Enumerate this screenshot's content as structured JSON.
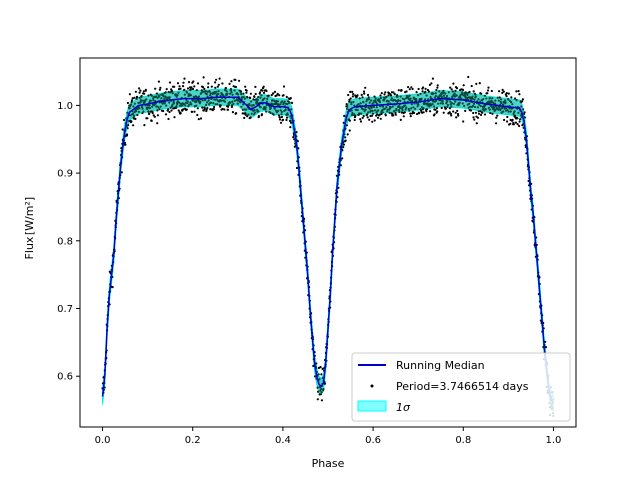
{
  "chart_data": {
    "type": "scatter",
    "xlabel": "Phase",
    "ylabel": "Flux",
    "ylabel_unit": "[W/m²]",
    "xlim": [
      -0.05,
      1.05
    ],
    "ylim": [
      0.525,
      1.07
    ],
    "xticks": [
      0.0,
      0.2,
      0.4,
      0.6,
      0.8,
      1.0
    ],
    "xtick_labels": [
      "0.0",
      "0.2",
      "0.4",
      "0.6",
      "0.8",
      "1.0"
    ],
    "yticks": [
      0.6,
      0.7,
      0.8,
      0.9,
      1.0
    ],
    "ytick_labels": [
      "0.6",
      "0.7",
      "0.8",
      "0.9",
      "1.0"
    ],
    "grid": false,
    "legend_position": "bottom-right",
    "legend": [
      {
        "label": "Running Median",
        "kind": "line",
        "color": "#0000cc"
      },
      {
        "label": "Period=3.7466514 days",
        "kind": "point",
        "color": "#000000"
      },
      {
        "label": "1σ",
        "kind": "patch",
        "color": "#00ffff"
      }
    ],
    "colors": {
      "median": "#0000cc",
      "points": "#000000",
      "band": "#00ffff",
      "band_core": "#10a080"
    },
    "points_spread": 0.012,
    "band_halfwidth": 0.012,
    "median": {
      "x": [
        0.0,
        0.005,
        0.01,
        0.015,
        0.02,
        0.025,
        0.03,
        0.035,
        0.04,
        0.045,
        0.05,
        0.055,
        0.06,
        0.07,
        0.08,
        0.1,
        0.12,
        0.15,
        0.18,
        0.2,
        0.22,
        0.25,
        0.28,
        0.3,
        0.31,
        0.32,
        0.33,
        0.34,
        0.35,
        0.36,
        0.38,
        0.4,
        0.41,
        0.415,
        0.42,
        0.425,
        0.43,
        0.435,
        0.44,
        0.445,
        0.45,
        0.455,
        0.46,
        0.465,
        0.47,
        0.475,
        0.48,
        0.485,
        0.49,
        0.495,
        0.5,
        0.505,
        0.51,
        0.515,
        0.52,
        0.525,
        0.53,
        0.535,
        0.54,
        0.545,
        0.55,
        0.56,
        0.6,
        0.65,
        0.7,
        0.75,
        0.8,
        0.85,
        0.9,
        0.925,
        0.93,
        0.935,
        0.94,
        0.945,
        0.95,
        0.955,
        0.96,
        0.965,
        0.97,
        0.975,
        0.98,
        0.985,
        0.99,
        0.995,
        1.0
      ],
      "y": [
        0.57,
        0.6,
        0.67,
        0.72,
        0.75,
        0.78,
        0.83,
        0.87,
        0.91,
        0.94,
        0.965,
        0.98,
        0.99,
        0.995,
        1.0,
        1.002,
        1.005,
        1.008,
        1.01,
        1.01,
        1.01,
        1.012,
        1.012,
        1.012,
        1.006,
        1.0,
        0.994,
        0.998,
        1.003,
        1.004,
        0.998,
        0.998,
        0.997,
        0.993,
        0.985,
        0.965,
        0.945,
        0.91,
        0.87,
        0.83,
        0.79,
        0.75,
        0.7,
        0.66,
        0.62,
        0.6,
        0.588,
        0.585,
        0.59,
        0.62,
        0.67,
        0.72,
        0.78,
        0.83,
        0.88,
        0.91,
        0.94,
        0.96,
        0.98,
        0.99,
        0.995,
        0.998,
        1.0,
        1.002,
        1.005,
        1.01,
        1.008,
        1.002,
        0.998,
        0.996,
        0.99,
        0.975,
        0.95,
        0.91,
        0.87,
        0.84,
        0.8,
        0.76,
        0.72,
        0.68,
        0.64,
        0.61,
        0.58,
        0.565,
        0.56
      ]
    }
  }
}
